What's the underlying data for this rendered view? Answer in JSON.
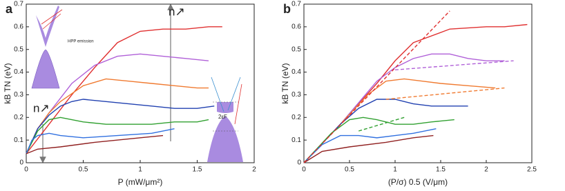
{
  "chart_data": [
    {
      "type": "line",
      "panel_label": "a",
      "xlabel": "P (mW/μm²)",
      "ylabel": "kB TN (eV)",
      "xlim": [
        0,
        2
      ],
      "xticks": [
        0,
        0.5,
        1,
        1.5,
        2
      ],
      "ylim": [
        0,
        0.7
      ],
      "yticks": [
        0,
        0.1,
        0.2,
        0.3,
        0.4,
        0.5,
        0.6,
        0.7
      ],
      "annotations": [
        "n↗",
        "n↗",
        "2εF",
        "HPP emission"
      ],
      "series": [
        {
          "color": "#e03030",
          "x": [
            0,
            0.2,
            0.4,
            0.6,
            0.8,
            1.0,
            1.2,
            1.4,
            1.6,
            1.72
          ],
          "values": [
            0.04,
            0.17,
            0.3,
            0.42,
            0.53,
            0.58,
            0.59,
            0.59,
            0.6,
            0.6
          ]
        },
        {
          "color": "#b060d8",
          "x": [
            0,
            0.1,
            0.2,
            0.4,
            0.6,
            0.8,
            1.0,
            1.2,
            1.4,
            1.6
          ],
          "values": [
            0.04,
            0.15,
            0.22,
            0.35,
            0.43,
            0.47,
            0.48,
            0.47,
            0.46,
            0.45
          ]
        },
        {
          "color": "#f07a30",
          "x": [
            0,
            0.1,
            0.2,
            0.3,
            0.5,
            0.7,
            0.9,
            1.1,
            1.3,
            1.5,
            1.6
          ],
          "values": [
            0.04,
            0.15,
            0.22,
            0.27,
            0.34,
            0.37,
            0.36,
            0.35,
            0.34,
            0.33,
            0.33
          ]
        },
        {
          "color": "#2040b0",
          "x": [
            0,
            0.1,
            0.2,
            0.3,
            0.4,
            0.5,
            0.7,
            0.9,
            1.1,
            1.3,
            1.5,
            1.65
          ],
          "values": [
            0.04,
            0.15,
            0.21,
            0.25,
            0.27,
            0.28,
            0.27,
            0.26,
            0.25,
            0.24,
            0.24,
            0.25
          ]
        },
        {
          "color": "#30a030",
          "x": [
            0,
            0.1,
            0.2,
            0.3,
            0.5,
            0.7,
            0.9,
            1.1,
            1.3,
            1.5,
            1.6
          ],
          "values": [
            0.04,
            0.14,
            0.19,
            0.2,
            0.18,
            0.17,
            0.17,
            0.17,
            0.18,
            0.18,
            0.19
          ]
        },
        {
          "color": "#3070e0",
          "x": [
            0,
            0.05,
            0.1,
            0.2,
            0.3,
            0.5,
            0.8,
            1.1,
            1.3
          ],
          "values": [
            0.04,
            0.1,
            0.12,
            0.13,
            0.12,
            0.11,
            0.12,
            0.13,
            0.15
          ]
        },
        {
          "color": "#902020",
          "x": [
            0,
            0.1,
            0.3,
            0.6,
            1.0,
            1.2
          ],
          "values": [
            0.04,
            0.06,
            0.07,
            0.09,
            0.11,
            0.12
          ]
        }
      ]
    },
    {
      "type": "line",
      "panel_label": "b",
      "xlabel": "(P/σ) 0.5 (V/μm)",
      "ylabel": "kB TN (eV)",
      "xlim": [
        0,
        2.5
      ],
      "xticks": [
        0,
        0.5,
        1,
        1.5,
        2,
        2.5
      ],
      "ylim": [
        0,
        0.7
      ],
      "yticks": [
        0,
        0.1,
        0.2,
        0.3,
        0.4,
        0.5,
        0.6,
        0.7
      ],
      "series": [
        {
          "color": "#e03030",
          "x": [
            0,
            0.4,
            0.8,
            1.0,
            1.2,
            1.6,
            2.0,
            2.2,
            2.45
          ],
          "values": [
            0,
            0.17,
            0.35,
            0.45,
            0.53,
            0.59,
            0.6,
            0.6,
            0.61
          ]
        },
        {
          "color": "#b060d8",
          "x": [
            0,
            0.4,
            0.8,
            1.0,
            1.2,
            1.4,
            1.6,
            1.8,
            2.0,
            2.2
          ],
          "values": [
            0,
            0.17,
            0.36,
            0.42,
            0.46,
            0.48,
            0.48,
            0.46,
            0.45,
            0.45
          ]
        },
        {
          "color": "#f07a30",
          "x": [
            0,
            0.4,
            0.7,
            0.9,
            1.1,
            1.3,
            1.5,
            1.8,
            2.1
          ],
          "values": [
            0,
            0.17,
            0.3,
            0.36,
            0.37,
            0.36,
            0.35,
            0.34,
            0.33
          ]
        },
        {
          "color": "#2040b0",
          "x": [
            0,
            0.4,
            0.6,
            0.8,
            1.0,
            1.2,
            1.4,
            1.6,
            1.8
          ],
          "values": [
            0,
            0.17,
            0.24,
            0.28,
            0.28,
            0.26,
            0.25,
            0.25,
            0.25
          ]
        },
        {
          "color": "#30a030",
          "x": [
            0,
            0.3,
            0.5,
            0.65,
            0.8,
            1.0,
            1.2,
            1.4,
            1.65
          ],
          "values": [
            0,
            0.13,
            0.19,
            0.2,
            0.19,
            0.17,
            0.17,
            0.18,
            0.19
          ]
        },
        {
          "color": "#3070e0",
          "x": [
            0,
            0.2,
            0.4,
            0.6,
            0.8,
            1.0,
            1.2,
            1.45
          ],
          "values": [
            0,
            0.08,
            0.12,
            0.12,
            0.11,
            0.12,
            0.13,
            0.15
          ]
        },
        {
          "color": "#902020",
          "x": [
            0,
            0.2,
            0.5,
            0.9,
            1.2,
            1.42
          ],
          "values": [
            0,
            0.05,
            0.07,
            0.09,
            0.11,
            0.12
          ]
        },
        {
          "color": "#e03030",
          "dashed": true,
          "x": [
            0,
            1.6
          ],
          "values": [
            0,
            0.67
          ]
        },
        {
          "color": "#b060d8",
          "dashed": true,
          "x": [
            1.0,
            2.3
          ],
          "values": [
            0.41,
            0.45
          ]
        },
        {
          "color": "#f07a30",
          "dashed": true,
          "x": [
            0.9,
            2.2
          ],
          "values": [
            0.28,
            0.33
          ]
        },
        {
          "color": "#30a030",
          "dashed": true,
          "x": [
            0.6,
            1.1
          ],
          "values": [
            0.14,
            0.2
          ]
        }
      ]
    }
  ]
}
